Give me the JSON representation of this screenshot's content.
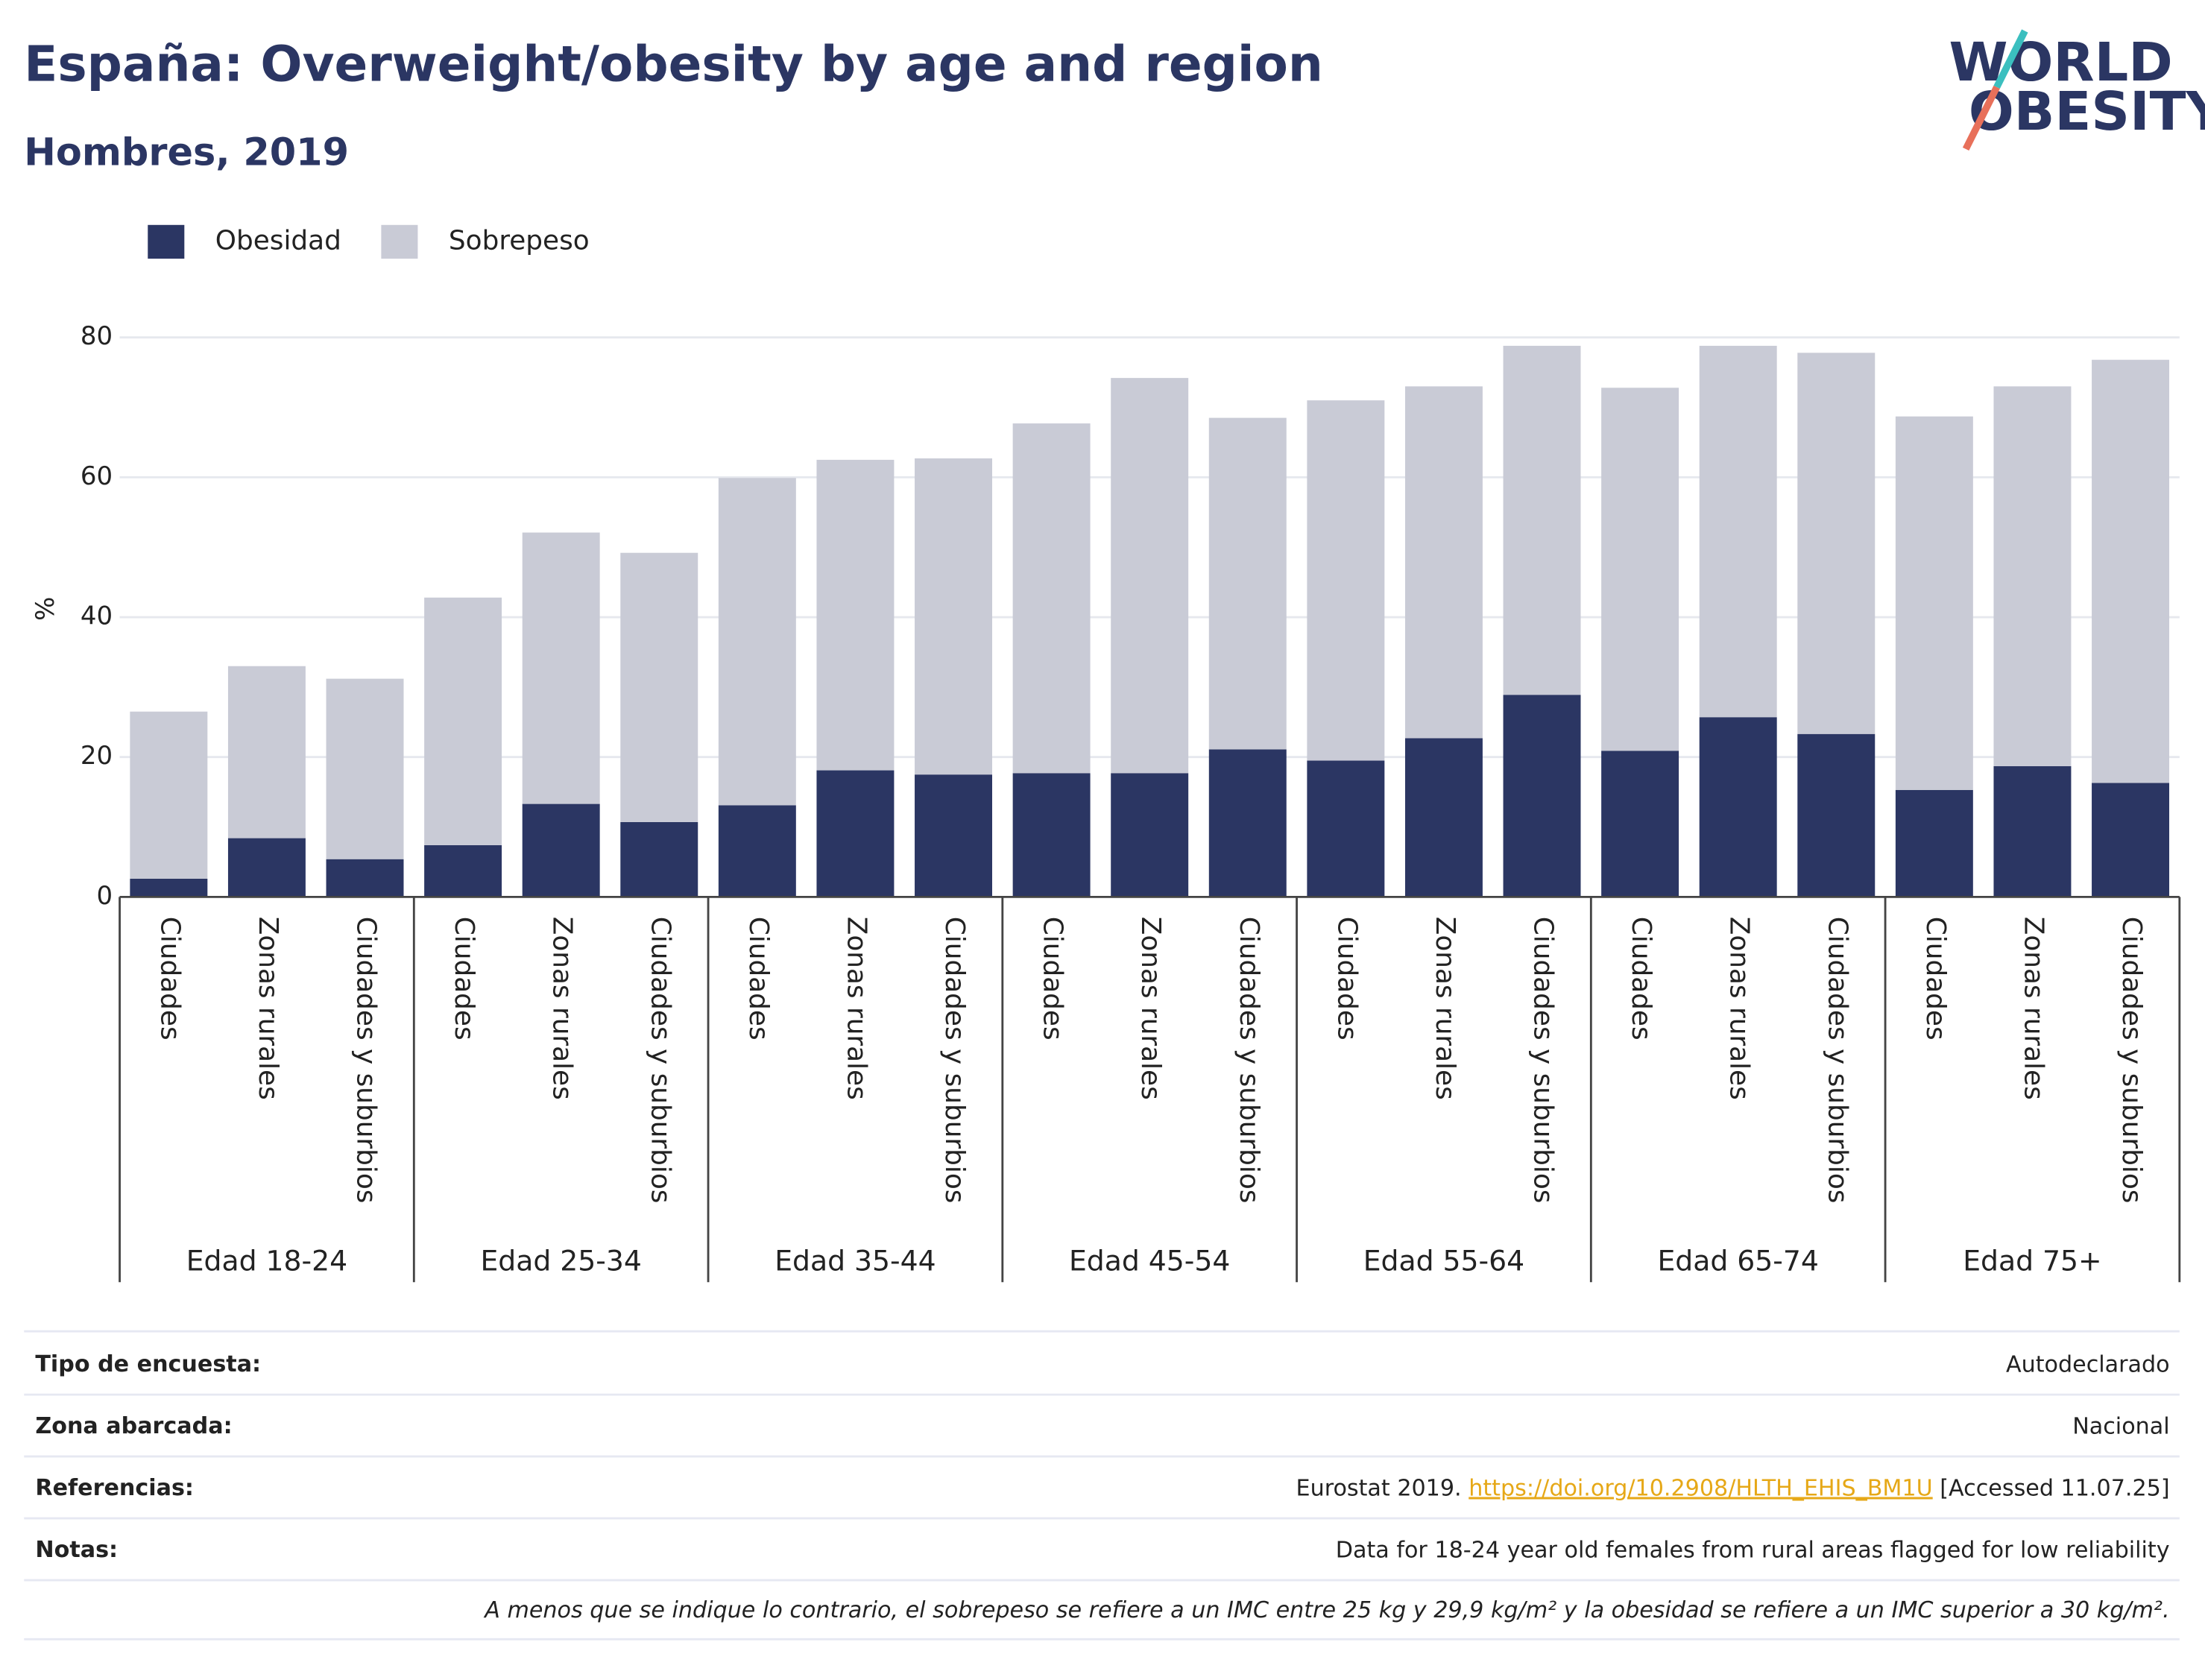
{
  "chart_data": {
    "type": "stacked-bar",
    "title": "España: Overweight/obesity by age and region",
    "subtitle": "Hombres, 2019",
    "y_label": "%",
    "groups": [
      {
        "name": "Edad 18-24",
        "categories": [
          "Ciudades",
          "Zonas rurales",
          "Ciudades y suburbios"
        ]
      },
      {
        "name": "Edad 25-34",
        "categories": [
          "Ciudades",
          "Zonas rurales",
          "Ciudades y suburbios"
        ]
      },
      {
        "name": "Edad 35-44",
        "categories": [
          "Ciudades",
          "Zonas rurales",
          "Ciudades y suburbios"
        ]
      },
      {
        "name": "Edad 45-54",
        "categories": [
          "Ciudades",
          "Zonas rurales",
          "Ciudades y suburbios"
        ]
      },
      {
        "name": "Edad 55-64",
        "categories": [
          "Ciudades",
          "Zonas rurales",
          "Ciudades y suburbios"
        ]
      },
      {
        "name": "Edad 65-74",
        "categories": [
          "Ciudades",
          "Zonas rurales",
          "Ciudades y suburbios"
        ]
      },
      {
        "name": "Edad 75+",
        "categories": [
          "Ciudades",
          "Zonas rurales",
          "Ciudades y suburbios"
        ]
      }
    ],
    "series": [
      {
        "name": "Obesidad",
        "color": "#2b3663",
        "values": [
          2.6,
          8.4,
          5.4,
          7.4,
          13.3,
          10.7,
          13.1,
          18.1,
          17.5,
          17.7,
          17.7,
          21.1,
          19.5,
          22.7,
          28.9,
          20.9,
          25.7,
          23.3,
          15.3,
          18.7,
          16.3
        ]
      },
      {
        "name": "Sobrepeso",
        "color": "#c9cbd6",
        "values": [
          23.9,
          24.6,
          25.8,
          35.4,
          38.8,
          38.5,
          46.8,
          44.4,
          45.2,
          50.0,
          56.5,
          47.4,
          51.5,
          50.3,
          49.9,
          51.9,
          53.1,
          54.5,
          53.4,
          54.3,
          60.5
        ]
      }
    ],
    "ylim": [
      0,
      80
    ],
    "yticks": [
      0,
      20,
      40,
      60,
      80
    ],
    "grid": true
  },
  "logo": [
    "WORLD",
    "OBESITY"
  ],
  "footer": {
    "rows": [
      {
        "label": "Tipo de encuesta:",
        "value": "Autodeclarado"
      },
      {
        "label": "Zona abarcada:",
        "value": "Nacional"
      },
      {
        "label": "Referencias:",
        "value": "Eurostat 2019. ",
        "link": "https://doi.org/10.2908/HLTH_EHIS_BM1U",
        "after": " [Accessed 11.07.25]"
      },
      {
        "label": "Notas:",
        "value": "Data for 18-24 year old females from rural areas flagged for low reliability"
      }
    ],
    "note": "A menos que se indique lo contrario, el sobrepeso se refiere a un IMC entre 25 kg y 29,9 kg/m² y la obesidad se refiere a un IMC superior a 30 kg/m²."
  }
}
